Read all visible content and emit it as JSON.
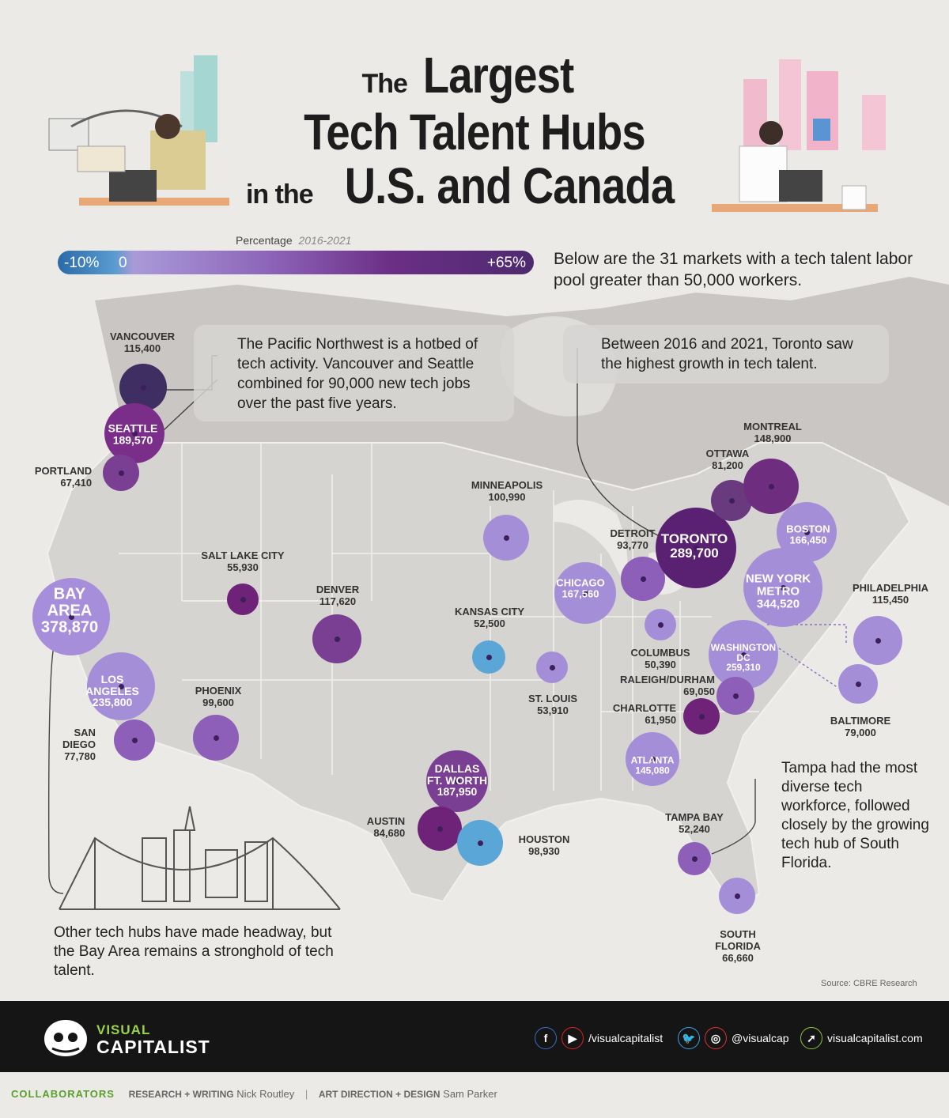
{
  "title": {
    "line1_small": "The",
    "line1_big": "Largest",
    "line2": "Tech Talent Hubs",
    "line3_small": "in the",
    "line3_big": "U.S. and Canada"
  },
  "legend": {
    "label": "Percentage",
    "period": "2016-2021",
    "min": "-10%",
    "zero": "0",
    "max": "+65%"
  },
  "intro": "Below are the 31 markets with a tech talent labor pool greater than 50,000 workers.",
  "callouts": {
    "pnw": "The Pacific Northwest is a hotbed of tech activity. Vancouver and Seattle combined for 90,000 new tech jobs over the past five years.",
    "toronto": "Between 2016 and 2021, Toronto saw the highest growth in tech talent.",
    "tampa": "Tampa had the most diverse tech workforce, followed closely by the growing tech hub of South Florida.",
    "bay": "Other tech hubs have made headway, but the Bay Area remains a stronghold of tech talent."
  },
  "colors": {
    "dark_purple": "#5a2a76",
    "purple": "#7b3d91",
    "mid_purple": "#8e5fb8",
    "light_purple": "#a58ed8",
    "blue": "#5aa6d6",
    "navy": "#3f2e62"
  },
  "markets": [
    {
      "name": "VANCOUVER",
      "value": "115,400"
    },
    {
      "name": "SEATTLE",
      "value": "189,570"
    },
    {
      "name": "PORTLAND",
      "value": "67,410"
    },
    {
      "name": "BAY AREA",
      "value": "378,870"
    },
    {
      "name": "LOS ANGELES",
      "value": "235,800"
    },
    {
      "name": "SAN DIEGO",
      "value": "77,780"
    },
    {
      "name": "PHOENIX",
      "value": "99,600"
    },
    {
      "name": "SALT LAKE CITY",
      "value": "55,930"
    },
    {
      "name": "DENVER",
      "value": "117,620"
    },
    {
      "name": "KANSAS CITY",
      "value": "52,500"
    },
    {
      "name": "MINNEAPOLIS",
      "value": "100,990"
    },
    {
      "name": "ST. LOUIS",
      "value": "53,910"
    },
    {
      "name": "CHICAGO",
      "value": "167,560"
    },
    {
      "name": "DETROIT",
      "value": "93,770"
    },
    {
      "name": "COLUMBUS",
      "value": "50,390"
    },
    {
      "name": "TORONTO",
      "value": "289,700"
    },
    {
      "name": "OTTAWA",
      "value": "81,200"
    },
    {
      "name": "MONTREAL",
      "value": "148,900"
    },
    {
      "name": "BOSTON",
      "value": "166,450"
    },
    {
      "name": "NEW YORK METRO",
      "value": "344,520"
    },
    {
      "name": "PHILADELPHIA",
      "value": "115,450"
    },
    {
      "name": "BALTIMORE",
      "value": "79,000"
    },
    {
      "name": "WASHINGTON DC",
      "value": "259,310"
    },
    {
      "name": "RALEIGH/DURHAM",
      "value": "69,050"
    },
    {
      "name": "CHARLOTTE",
      "value": "61,950"
    },
    {
      "name": "ATLANTA",
      "value": "145,080"
    },
    {
      "name": "DALLAS FT. WORTH",
      "value": "187,950"
    },
    {
      "name": "AUSTIN",
      "value": "84,680"
    },
    {
      "name": "HOUSTON",
      "value": "98,930"
    },
    {
      "name": "TAMPA BAY",
      "value": "52,240"
    },
    {
      "name": "SOUTH FLORIDA",
      "value": "66,660"
    }
  ],
  "labels": {
    "vancouver": "VANCOUVER",
    "seattle": "SEATTLE",
    "portland": "PORTLAND",
    "bay1": "BAY",
    "bay2": "AREA",
    "la1": "LOS",
    "la2": "ANGELES",
    "sd1": "SAN",
    "sd2": "DIEGO",
    "phoenix": "PHOENIX",
    "slc": "SALT LAKE CITY",
    "denver": "DENVER",
    "kc": "KANSAS CITY",
    "minneapolis": "MINNEAPOLIS",
    "stl": "ST. LOUIS",
    "chicago": "CHICAGO",
    "detroit": "DETROIT",
    "columbus": "COLUMBUS",
    "toronto": "TORONTO",
    "ottawa": "OTTAWA",
    "montreal": "MONTREAL",
    "boston": "BOSTON",
    "ny1": "NEW YORK",
    "ny2": "METRO",
    "philly": "PHILADELPHIA",
    "baltimore": "BALTIMORE",
    "dc1": "WASHINGTON",
    "dc2": "DC",
    "raleigh": "RALEIGH/DURHAM",
    "charlotte": "CHARLOTTE",
    "atlanta": "ATLANTA",
    "dfw1": "DALLAS",
    "dfw2": "FT. WORTH",
    "austin": "AUSTIN",
    "houston": "HOUSTON",
    "tampa": "TAMPA BAY",
    "sfl1": "SOUTH",
    "sfl2": "FLORIDA"
  },
  "source": "Source: CBRE Research",
  "footer": {
    "brand1": "VISUAL",
    "brand2": "CAPITALIST",
    "yt_handle": "/visualcapitalist",
    "ig_handle": "@visualcap",
    "website": "visualcapitalist.com",
    "fb_icon": "f",
    "yt_icon": "▶",
    "tw_icon": "🐦",
    "ig_icon": "◎",
    "web_icon": "➚"
  },
  "collaborators": {
    "heading": "COLLABORATORS",
    "research_label": "RESEARCH + WRITING",
    "research_name": "Nick Routley",
    "design_label": "ART DIRECTION + DESIGN",
    "design_name": "Sam Parker"
  }
}
